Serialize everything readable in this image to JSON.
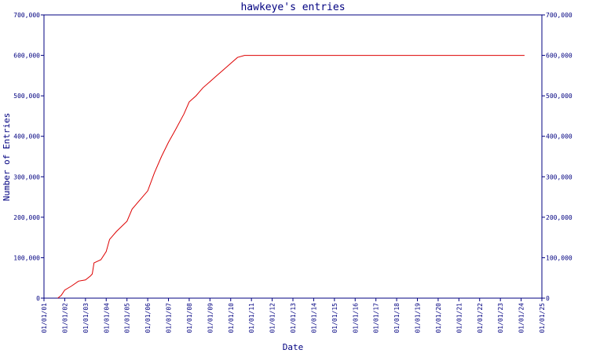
{
  "chart_data": {
    "type": "line",
    "title": "hawkeye's entries",
    "xlabel": "Date",
    "ylabel": "Number of Entries",
    "x_ticks": [
      "01/01/01",
      "01/01/02",
      "01/01/03",
      "01/01/04",
      "01/01/05",
      "01/01/06",
      "01/01/07",
      "01/01/08",
      "01/01/09",
      "01/01/10",
      "01/01/11",
      "01/01/12",
      "01/01/13",
      "01/01/14",
      "01/01/15",
      "01/01/16",
      "01/01/17",
      "01/01/18",
      "01/01/19",
      "01/01/20",
      "01/01/21",
      "01/01/22",
      "01/01/23",
      "01/01/24",
      "01/01/25"
    ],
    "y_ticks": [
      "0",
      "100,000",
      "200,000",
      "300,000",
      "400,000",
      "500,000",
      "600,000",
      "700,000"
    ],
    "ylim": [
      0,
      700000
    ],
    "xlim": [
      "2001-01-01",
      "2025-01-01"
    ],
    "grid": false,
    "legend": "none",
    "colors": {
      "line": "#dd0000",
      "axis": "#000080",
      "text": "#000080"
    },
    "series": [
      {
        "x": [
          "2001-09-01",
          "2001-11-01",
          "2002-01-01",
          "2002-05-01",
          "2002-09-01",
          "2003-01-01",
          "2003-04-01",
          "2003-05-01",
          "2003-06-01",
          "2003-10-01",
          "2004-01-01",
          "2004-03-01",
          "2004-07-01",
          "2005-01-01",
          "2005-04-01",
          "2005-08-01",
          "2006-01-01",
          "2006-05-01",
          "2006-09-01",
          "2007-01-01",
          "2007-05-01",
          "2007-10-01",
          "2008-01-01",
          "2008-05-01",
          "2008-09-01",
          "2009-01-01",
          "2009-05-01",
          "2009-09-01",
          "2010-01-01",
          "2010-05-01",
          "2010-09-01",
          "2011-01-01",
          "2012-01-01",
          "2013-01-01",
          "2014-01-01",
          "2015-01-01",
          "2016-01-01",
          "2017-01-01",
          "2018-01-01",
          "2019-01-01",
          "2020-01-01",
          "2021-01-01",
          "2022-01-01",
          "2023-01-01",
          "2024-01-01",
          "2024-03-01"
        ],
        "y": [
          0,
          7000,
          20000,
          30000,
          42000,
          45000,
          55000,
          60000,
          87000,
          95000,
          115000,
          145000,
          165000,
          190000,
          220000,
          240000,
          265000,
          310000,
          350000,
          385000,
          415000,
          455000,
          485000,
          500000,
          520000,
          535000,
          550000,
          565000,
          580000,
          595000,
          600000,
          600000,
          600000,
          600000,
          600000,
          600000,
          600000,
          600000,
          600000,
          600000,
          600000,
          600000,
          600000,
          600000,
          600000,
          600000
        ]
      }
    ]
  }
}
